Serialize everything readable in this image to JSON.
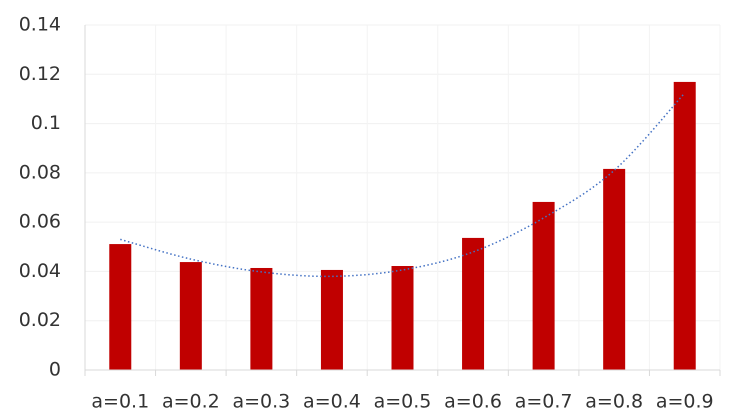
{
  "chart_data": {
    "type": "bar",
    "categories": [
      "a=0.1",
      "a=0.2",
      "a=0.3",
      "a=0.4",
      "a=0.5",
      "a=0.6",
      "a=0.7",
      "a=0.8",
      "a=0.9"
    ],
    "values": [
      0.0511,
      0.0438,
      0.0414,
      0.0406,
      0.0422,
      0.0536,
      0.0682,
      0.0816,
      0.1169
    ],
    "color": "#c00000",
    "trendline": {
      "color": "#4472c4",
      "values": [
        0.053,
        0.045,
        0.0398,
        0.038,
        0.0406,
        0.0479,
        0.0617,
        0.081,
        0.1124
      ]
    },
    "ylim": [
      0,
      0.14
    ],
    "yticks": [
      0,
      0.02,
      0.04,
      0.06,
      0.08,
      0.1,
      0.12,
      0.14
    ],
    "grid": true
  }
}
